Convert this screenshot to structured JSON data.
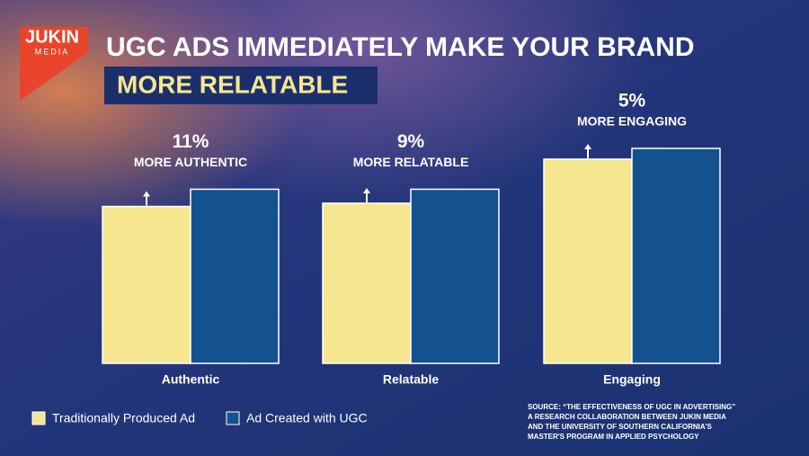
{
  "logo": {
    "name": "JUKIN",
    "sub": "MEDIA"
  },
  "chart_data": {
    "type": "bar",
    "title": "UGC ADS IMMEDIATELY MAKE YOUR BRAND",
    "subtitle": "MORE RELATABLE",
    "categories": [
      "Authentic",
      "Relatable",
      "Engaging"
    ],
    "series": [
      {
        "name": "Traditionally Produced Ad",
        "color": "#f6e68f",
        "values": [
          73,
          74.5,
          95
        ]
      },
      {
        "name": "Ad Created with UGC",
        "color": "#14528f",
        "values": [
          81,
          81,
          100
        ]
      }
    ],
    "ylim": [
      0,
      100
    ],
    "annotations": [
      {
        "label": "11%",
        "text": "MORE AUTHENTIC"
      },
      {
        "label": "9%",
        "text": "MORE RELATABLE"
      },
      {
        "label": "5%",
        "text": "MORE ENGAGING"
      }
    ],
    "source": [
      "SOURCE: “THE EFFECTIVENESS OF UGC IN ADVERTISING”",
      "A RESEARCH COLLABORATION BETWEEN JUKIN MEDIA",
      "AND THE UNIVERSITY OF SOUTHERN CALIFORNIA'S",
      "MASTER'S PROGRAM IN APPLIED PSYCHOLOGY"
    ]
  }
}
